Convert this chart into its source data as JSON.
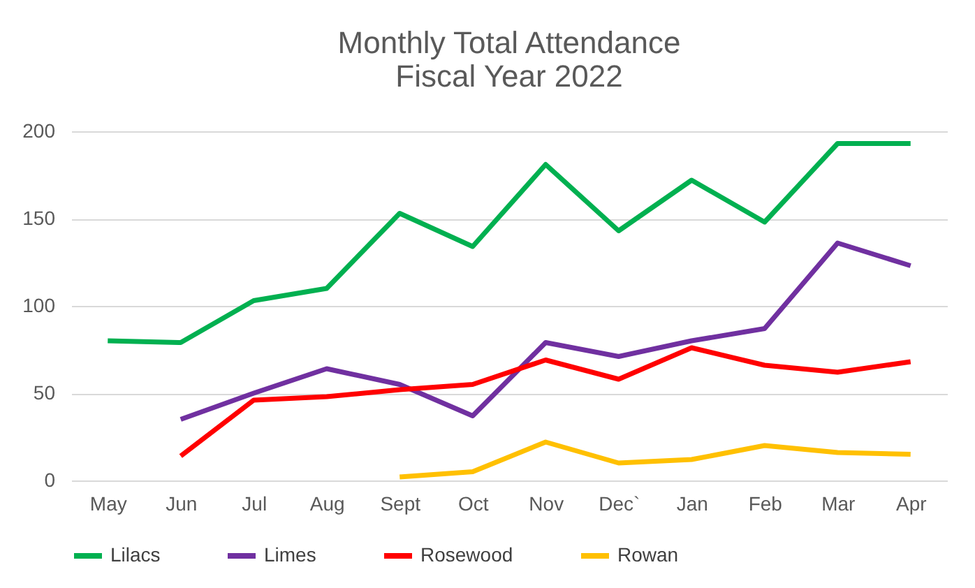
{
  "chart_data": {
    "type": "line",
    "title": "Monthly Total Attendance\nFiscal Year 2022",
    "categories": [
      "May",
      "Jun",
      "Jul",
      "Aug",
      "Sept",
      "Oct",
      "Nov",
      "Dec`",
      "Jan",
      "Feb",
      "Mar",
      "Apr"
    ],
    "series": [
      {
        "name": "Lilacs",
        "color": "#00b050",
        "values": [
          80,
          79,
          103,
          110,
          153,
          134,
          181,
          143,
          172,
          148,
          193,
          193
        ]
      },
      {
        "name": "Limes",
        "color": "#7030a0",
        "values": [
          null,
          35,
          50,
          64,
          55,
          37,
          79,
          71,
          80,
          87,
          136,
          123
        ]
      },
      {
        "name": "Rosewood",
        "color": "#ff0000",
        "values": [
          null,
          14,
          46,
          48,
          52,
          55,
          69,
          58,
          76,
          66,
          62,
          68
        ]
      },
      {
        "name": "Rowan",
        "color": "#ffc000",
        "values": [
          null,
          null,
          null,
          null,
          2,
          5,
          22,
          10,
          12,
          20,
          16,
          15
        ]
      }
    ],
    "ylim": [
      0,
      200
    ],
    "yticks": [
      0,
      50,
      100,
      150,
      200
    ],
    "grid": "y",
    "legend": "bottom",
    "marker": "none",
    "line_style": "solid"
  }
}
